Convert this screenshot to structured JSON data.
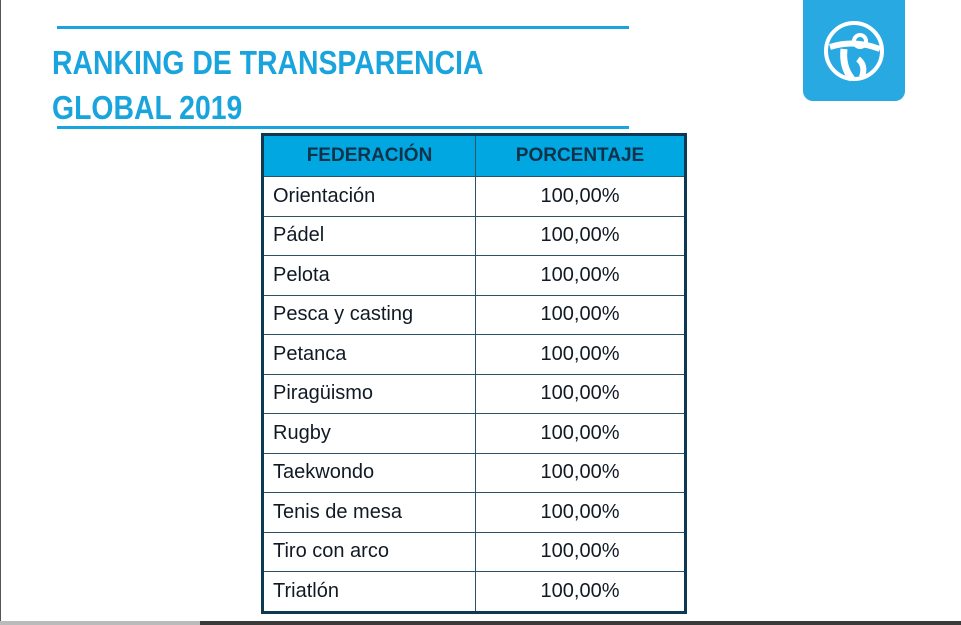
{
  "title": {
    "line1": "RANKING DE TRANSPARENCIA",
    "line2": "GLOBAL 2019"
  },
  "logo": {
    "icon": "transparency-international-globe-icon",
    "color": "#29a9e1"
  },
  "table": {
    "headers": [
      "FEDERACIÓN",
      "PORCENTAJE"
    ],
    "rows": [
      [
        "Orientación",
        "100,00%"
      ],
      [
        "Pádel",
        "100,00%"
      ],
      [
        "Pelota",
        "100,00%"
      ],
      [
        "Pesca y casting",
        "100,00%"
      ],
      [
        "Petanca",
        "100,00%"
      ],
      [
        "Piragüismo",
        "100,00%"
      ],
      [
        "Rugby",
        "100,00%"
      ],
      [
        "Taekwondo",
        "100,00%"
      ],
      [
        "Tenis de mesa",
        "100,00%"
      ],
      [
        "Tiro con arco",
        "100,00%"
      ],
      [
        "Triatlón",
        "100,00%"
      ]
    ]
  }
}
